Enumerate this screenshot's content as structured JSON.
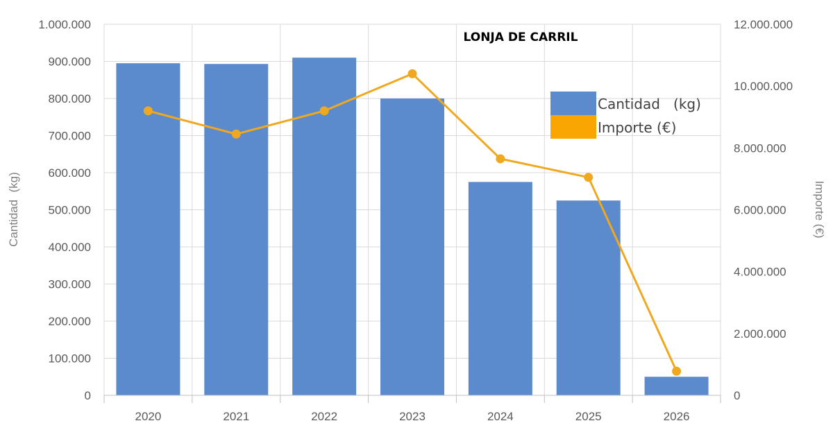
{
  "chart_data": {
    "type": "bar",
    "title": "LONJA DE CARRIL",
    "categories": [
      "2020",
      "2021",
      "2022",
      "2023",
      "2024",
      "2025",
      "2026"
    ],
    "series": [
      {
        "name": "Cantidad   (kg)",
        "type": "bar",
        "axis": "left",
        "color": "#5b8bcc",
        "values": [
          895000,
          893000,
          910000,
          800000,
          575000,
          525000,
          50000
        ]
      },
      {
        "name": "Importe (€)",
        "type": "line",
        "axis": "right",
        "color": "#f0a81e",
        "values": [
          9200000,
          8450000,
          9200000,
          10400000,
          7650000,
          7050000,
          780000
        ]
      }
    ],
    "ylabel": "Cantidad  (kg)",
    "y2label": "Importe (€)",
    "ylim": [
      0,
      1000000
    ],
    "y2lim": [
      0,
      12000000
    ],
    "yticks": [
      "0",
      "100.000",
      "200.000",
      "300.000",
      "400.000",
      "500.000",
      "600.000",
      "700.000",
      "800.000",
      "900.000",
      "1.000.000"
    ],
    "y2ticks": [
      "0",
      "2.000.000",
      "4.000.000",
      "6.000.000",
      "8.000.000",
      "10.000.000",
      "12.000.000"
    ],
    "grid": true,
    "legend_position": "top-right"
  }
}
